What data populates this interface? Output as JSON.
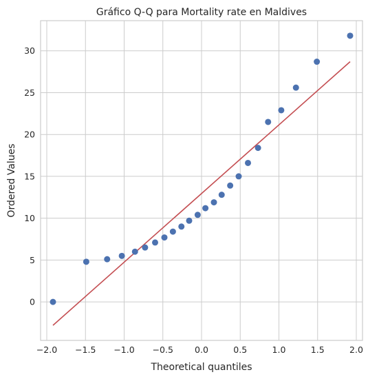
{
  "chart_data": {
    "type": "scatter",
    "title": "Gráfico Q-Q para Mortality rate en Maldives",
    "xlabel": "Theoretical quantiles",
    "ylabel": "Ordered Values",
    "xlim": [
      -2.08,
      2.08
    ],
    "ylim": [
      -4.6,
      33.6
    ],
    "xticks": [
      -2.0,
      -1.5,
      -1.0,
      -0.5,
      0.0,
      0.5,
      1.0,
      1.5,
      2.0
    ],
    "xtick_labels": [
      "−2.0",
      "−1.5",
      "−1.0",
      "−0.5",
      "0.0",
      "0.5",
      "1.0",
      "1.5",
      "2.0"
    ],
    "yticks": [
      0,
      5,
      10,
      15,
      20,
      25,
      30
    ],
    "ytick_labels": [
      "0",
      "5",
      "10",
      "15",
      "20",
      "25",
      "30"
    ],
    "grid": true,
    "colors": {
      "points": "#4c72b0",
      "fit_line": "#c44e52",
      "grid": "#cccccc"
    },
    "points": {
      "x": [
        -1.92,
        -1.49,
        -1.22,
        -1.03,
        -0.86,
        -0.73,
        -0.6,
        -0.48,
        -0.37,
        -0.26,
        -0.16,
        -0.05,
        0.05,
        0.16,
        0.26,
        0.37,
        0.48,
        0.6,
        0.73,
        0.86,
        1.03,
        1.22,
        1.49,
        1.92
      ],
      "y": [
        0.0,
        4.8,
        5.1,
        5.5,
        6.0,
        6.5,
        7.1,
        7.7,
        8.4,
        9.0,
        9.7,
        10.4,
        11.2,
        11.9,
        12.8,
        13.9,
        15.0,
        16.6,
        18.4,
        21.5,
        22.9,
        25.6,
        28.7,
        31.8
      ]
    },
    "fit_line": {
      "x": [
        -1.92,
        1.92
      ],
      "y": [
        -2.8,
        28.7
      ]
    }
  }
}
